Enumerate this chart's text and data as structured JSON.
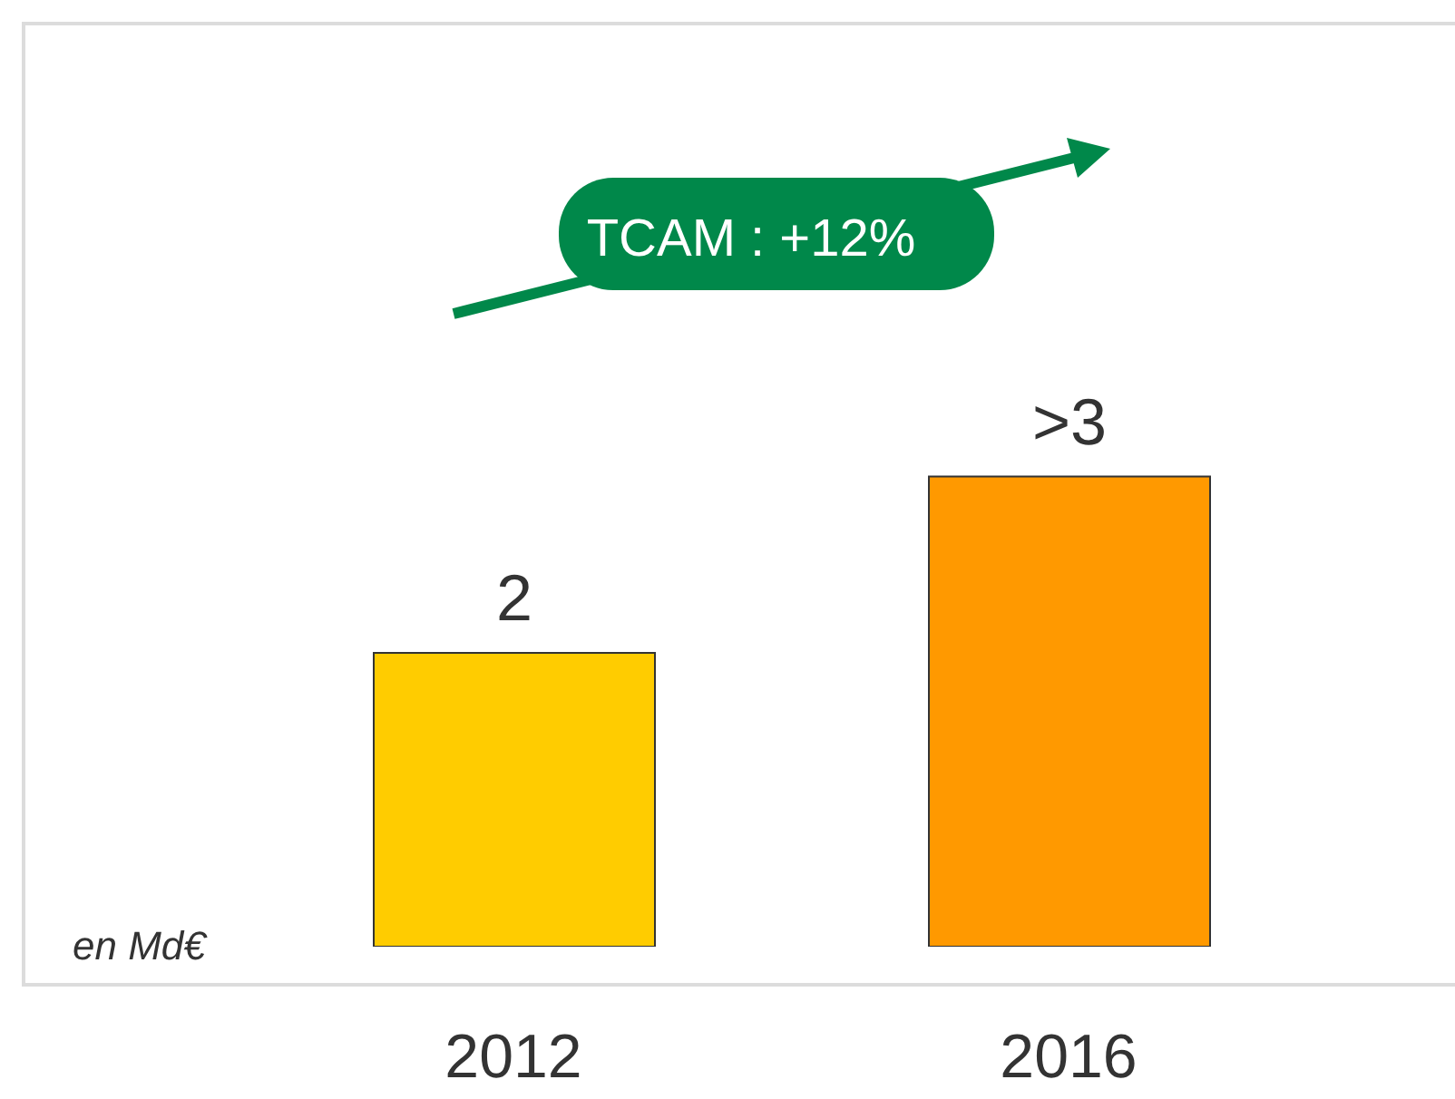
{
  "chart_data": {
    "type": "bar",
    "categories": [
      "2012",
      "2016"
    ],
    "values": [
      2,
      3.2
    ],
    "value_labels": [
      "2",
      ">3"
    ],
    "colors": [
      "#ffcc00",
      "#ff9900"
    ],
    "annotations": [
      "TCAM : +12%",
      "en Md€"
    ]
  }
}
